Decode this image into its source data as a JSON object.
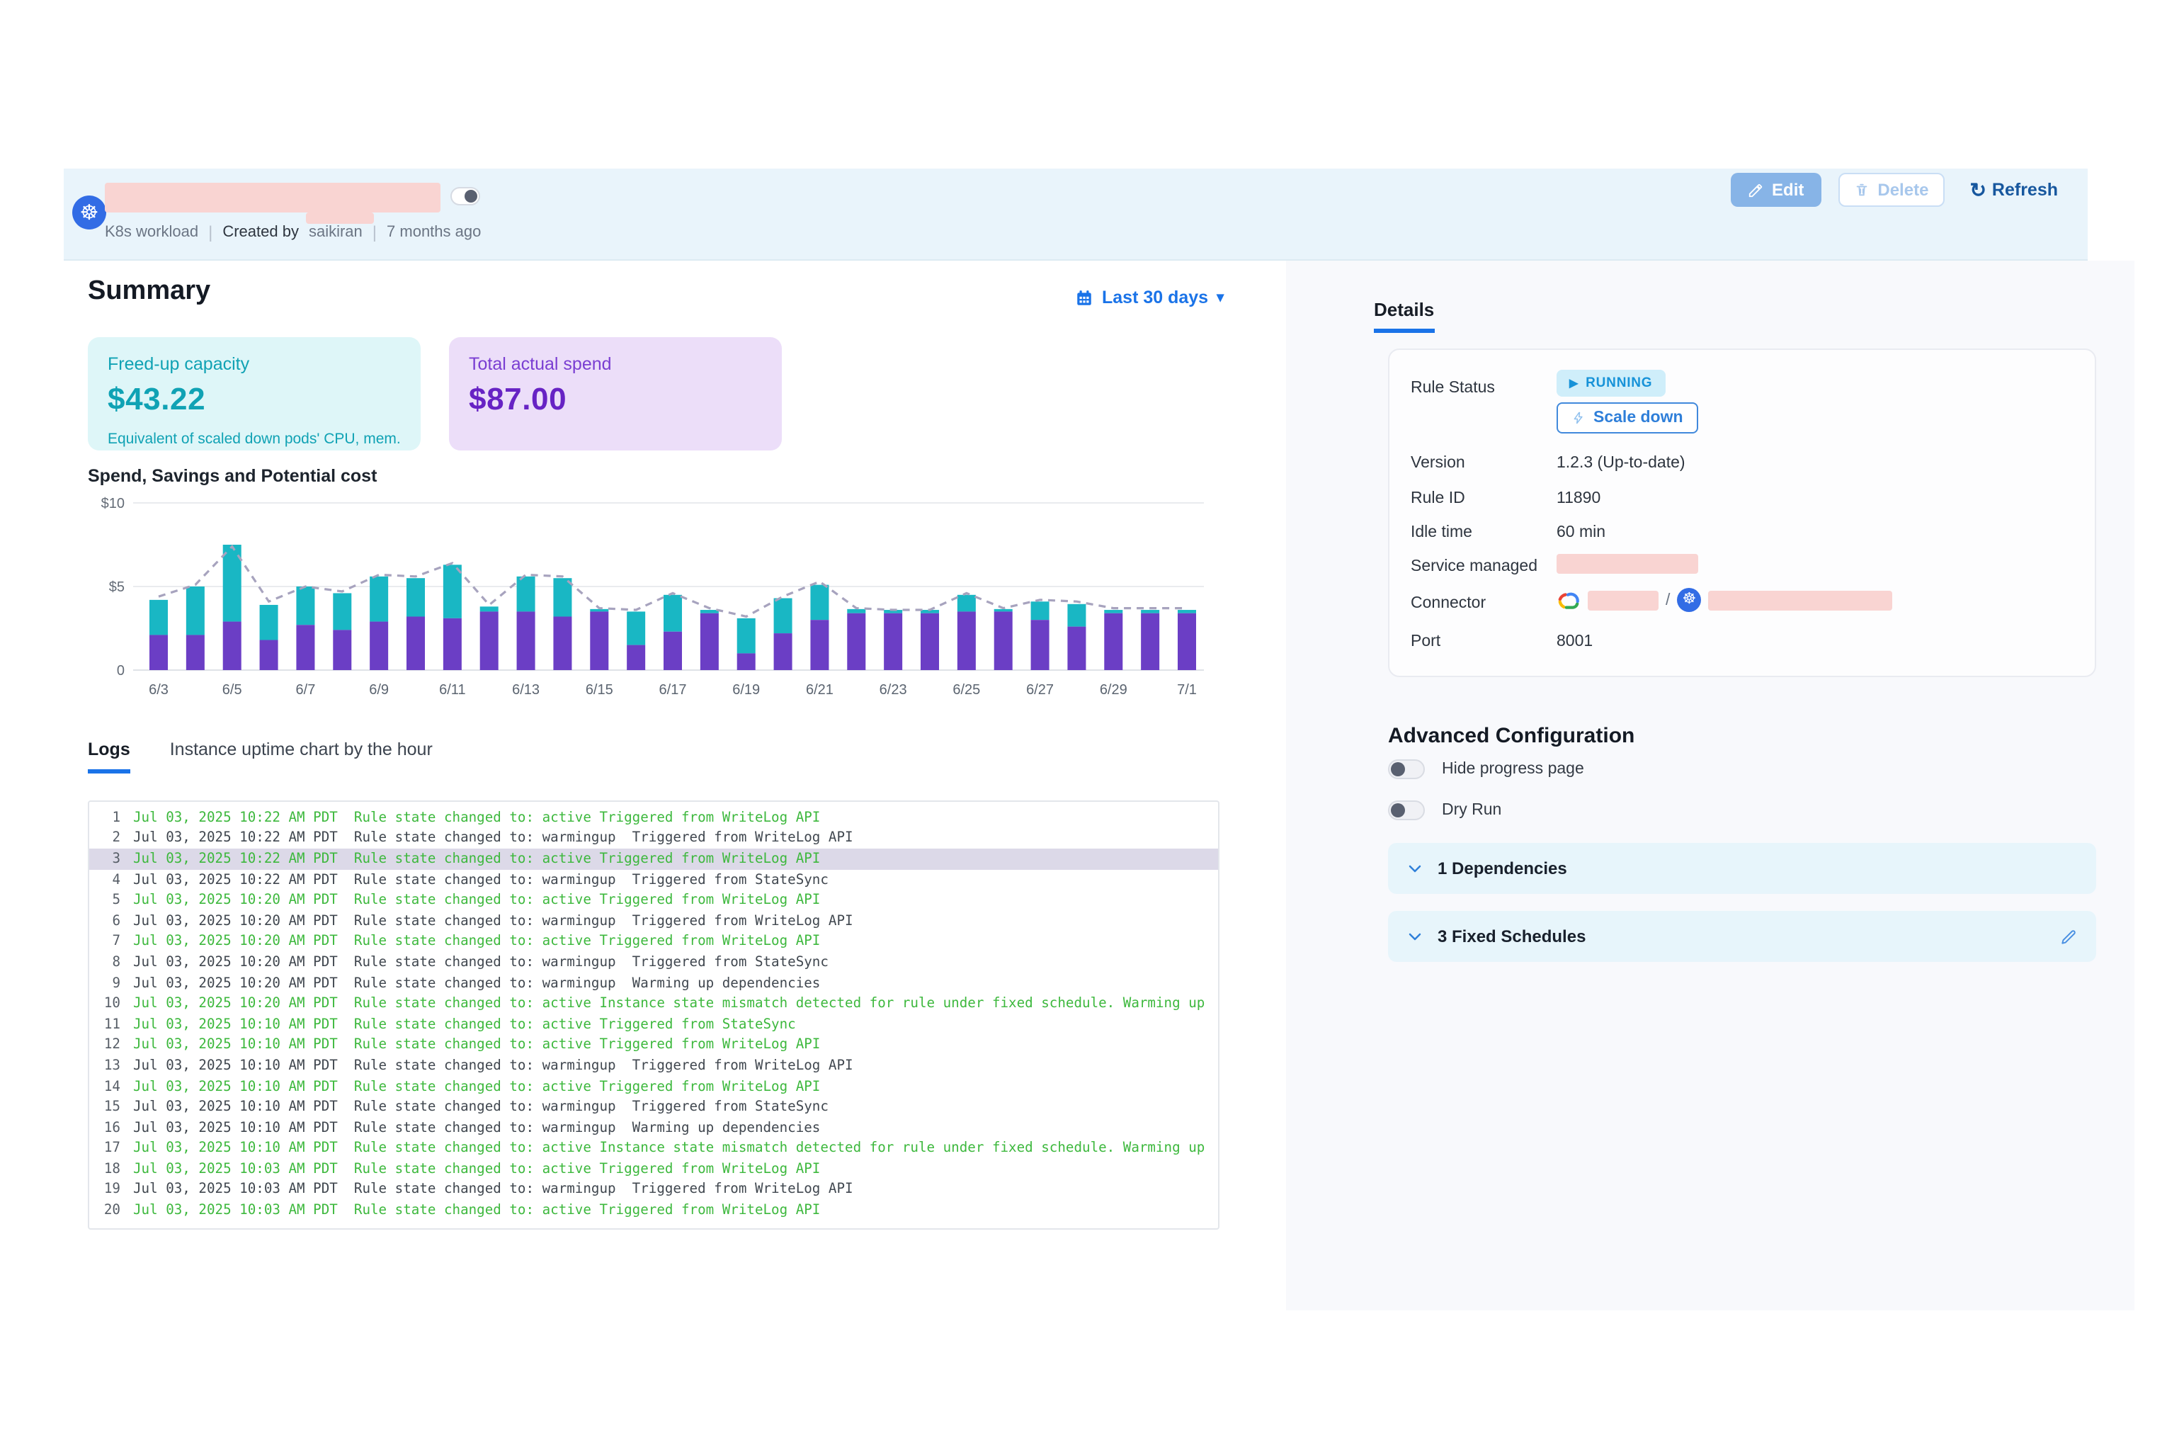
{
  "header": {
    "workload_type": "K8s workload",
    "created_by_label": "Created by",
    "created_by": "saikiran",
    "age": "7 months ago",
    "edit_label": "Edit",
    "delete_label": "Delete",
    "refresh_label": "Refresh",
    "refresh_icon": "↻"
  },
  "summary": {
    "title": "Summary",
    "date_range": "Last 30 days",
    "cards": [
      {
        "label": "Freed-up capacity",
        "value": "$43.22",
        "caption": "Equivalent of scaled down pods' CPU, mem."
      },
      {
        "label": "Total actual spend",
        "value": "$87.00"
      }
    ]
  },
  "chart_data": {
    "type": "bar",
    "title": "Spend, Savings and Potential cost",
    "x": [
      "6/3",
      "6/4",
      "6/5",
      "6/6",
      "6/7",
      "6/8",
      "6/9",
      "6/10",
      "6/11",
      "6/12",
      "6/13",
      "6/14",
      "6/15",
      "6/16",
      "6/17",
      "6/18",
      "6/19",
      "6/20",
      "6/21",
      "6/22",
      "6/23",
      "6/24",
      "6/25",
      "6/26",
      "6/27",
      "6/28",
      "6/29",
      "6/30",
      "7/1"
    ],
    "x_tick_labels": [
      "6/3",
      "6/5",
      "6/7",
      "6/9",
      "6/11",
      "6/13",
      "6/15",
      "6/17",
      "6/19",
      "6/21",
      "6/23",
      "6/25",
      "6/27",
      "6/29",
      "7/1"
    ],
    "ylim": [
      0,
      10
    ],
    "y_ticks": [
      {
        "v": 10,
        "label": "$10"
      },
      {
        "v": 5,
        "label": "$5"
      },
      {
        "v": 0,
        "label": "0"
      }
    ],
    "grid": true,
    "legend": "none",
    "series": [
      {
        "name": "Spend",
        "type": "bar",
        "stacked": true,
        "color": "#6b3ec5",
        "values": [
          2.1,
          2.1,
          2.9,
          1.8,
          2.7,
          2.4,
          2.9,
          3.2,
          3.1,
          3.5,
          3.5,
          3.2,
          3.5,
          1.5,
          2.3,
          3.4,
          1.0,
          2.2,
          3.0,
          3.4,
          3.4,
          3.4,
          3.5,
          3.5,
          3.0,
          2.6,
          3.4,
          3.4,
          3.4
        ]
      },
      {
        "name": "Savings",
        "type": "bar",
        "stacked": true,
        "color": "#19b7c4",
        "values": [
          2.1,
          2.9,
          4.6,
          2.1,
          2.3,
          2.2,
          2.7,
          2.3,
          3.2,
          0.3,
          2.1,
          2.3,
          0.15,
          2.0,
          2.2,
          0.2,
          2.1,
          2.1,
          2.1,
          0.25,
          0.2,
          0.2,
          1.0,
          0.15,
          1.1,
          1.35,
          0.2,
          0.2,
          0.2
        ]
      },
      {
        "name": "Potential cost",
        "type": "line",
        "style": "dashed",
        "color": "#a7a3be",
        "values": [
          4.4,
          5.1,
          7.4,
          4.1,
          5.0,
          4.7,
          5.7,
          5.6,
          6.4,
          3.9,
          5.7,
          5.6,
          3.7,
          3.6,
          4.6,
          3.7,
          3.2,
          4.4,
          5.3,
          3.7,
          3.6,
          3.6,
          4.6,
          3.7,
          4.2,
          4.1,
          3.7,
          3.7,
          3.7
        ]
      }
    ]
  },
  "tabs": {
    "logs": "Logs",
    "uptime": "Instance uptime chart by the hour"
  },
  "logs": [
    {
      "num": "1",
      "state": "active",
      "selected": false,
      "text": "Jul 03, 2025 10:22 AM PDT  Rule state changed to: active Triggered from WriteLog API"
    },
    {
      "num": "2",
      "state": "warn",
      "selected": false,
      "text": "Jul 03, 2025 10:22 AM PDT  Rule state changed to: warmingup  Triggered from WriteLog API"
    },
    {
      "num": "3",
      "state": "active",
      "selected": true,
      "text": "Jul 03, 2025 10:22 AM PDT  Rule state changed to: active Triggered from WriteLog API"
    },
    {
      "num": "4",
      "state": "warn",
      "selected": false,
      "text": "Jul 03, 2025 10:22 AM PDT  Rule state changed to: warmingup  Triggered from StateSync"
    },
    {
      "num": "5",
      "state": "active",
      "selected": false,
      "text": "Jul 03, 2025 10:20 AM PDT  Rule state changed to: active Triggered from WriteLog API"
    },
    {
      "num": "6",
      "state": "warn",
      "selected": false,
      "text": "Jul 03, 2025 10:20 AM PDT  Rule state changed to: warmingup  Triggered from WriteLog API"
    },
    {
      "num": "7",
      "state": "active",
      "selected": false,
      "text": "Jul 03, 2025 10:20 AM PDT  Rule state changed to: active Triggered from WriteLog API"
    },
    {
      "num": "8",
      "state": "warn",
      "selected": false,
      "text": "Jul 03, 2025 10:20 AM PDT  Rule state changed to: warmingup  Triggered from StateSync"
    },
    {
      "num": "9",
      "state": "warn",
      "selected": false,
      "text": "Jul 03, 2025 10:20 AM PDT  Rule state changed to: warmingup  Warming up dependencies"
    },
    {
      "num": "10",
      "state": "active",
      "selected": false,
      "text": "Jul 03, 2025 10:20 AM PDT  Rule state changed to: active Instance state mismatch detected for rule under fixed schedule. Warming up"
    },
    {
      "num": "11",
      "state": "active",
      "selected": false,
      "text": "Jul 03, 2025 10:10 AM PDT  Rule state changed to: active Triggered from StateSync"
    },
    {
      "num": "12",
      "state": "active",
      "selected": false,
      "text": "Jul 03, 2025 10:10 AM PDT  Rule state changed to: active Triggered from WriteLog API"
    },
    {
      "num": "13",
      "state": "warn",
      "selected": false,
      "text": "Jul 03, 2025 10:10 AM PDT  Rule state changed to: warmingup  Triggered from WriteLog API"
    },
    {
      "num": "14",
      "state": "active",
      "selected": false,
      "text": "Jul 03, 2025 10:10 AM PDT  Rule state changed to: active Triggered from WriteLog API"
    },
    {
      "num": "15",
      "state": "warn",
      "selected": false,
      "text": "Jul 03, 2025 10:10 AM PDT  Rule state changed to: warmingup  Triggered from StateSync"
    },
    {
      "num": "16",
      "state": "warn",
      "selected": false,
      "text": "Jul 03, 2025 10:10 AM PDT  Rule state changed to: warmingup  Warming up dependencies"
    },
    {
      "num": "17",
      "state": "active",
      "selected": false,
      "text": "Jul 03, 2025 10:10 AM PDT  Rule state changed to: active Instance state mismatch detected for rule under fixed schedule. Warming up"
    },
    {
      "num": "18",
      "state": "active",
      "selected": false,
      "text": "Jul 03, 2025 10:03 AM PDT  Rule state changed to: active Triggered from WriteLog API"
    },
    {
      "num": "19",
      "state": "warn",
      "selected": false,
      "text": "Jul 03, 2025 10:03 AM PDT  Rule state changed to: warmingup  Triggered from WriteLog API"
    },
    {
      "num": "20",
      "state": "active",
      "selected": false,
      "text": "Jul 03, 2025 10:03 AM PDT  Rule state changed to: active Triggered from WriteLog API"
    }
  ],
  "details": {
    "tab_label": "Details",
    "rule_status_label": "Rule Status",
    "running_label": "RUNNING",
    "scale_down_label": "Scale down",
    "version_label": "Version",
    "version_value": "1.2.3 (Up-to-date)",
    "rule_id_label": "Rule ID",
    "rule_id_value": "11890",
    "idle_time_label": "Idle time",
    "idle_time_value": "60 min",
    "service_managed_label": "Service managed",
    "connector_label": "Connector",
    "connector_separator": "/",
    "port_label": "Port",
    "port_value": "8001"
  },
  "advanced": {
    "title": "Advanced Configuration",
    "toggles": [
      {
        "label": "Hide progress page",
        "on": false
      },
      {
        "label": "Dry Run",
        "on": false
      }
    ],
    "accordions": [
      {
        "label": "1 Dependencies",
        "editable": false
      },
      {
        "label": "3 Fixed Schedules",
        "editable": true
      }
    ]
  },
  "colors": {
    "header_bg": "#e9f4fb",
    "accent_blue": "#1a73e8",
    "teal": "#19b7c4",
    "purple": "#6b3ec5",
    "log_green": "#3db83d",
    "redaction_pink": "#f9d4d2",
    "right_panel_bg": "#f8f9fc",
    "running_badge_bg": "#cfeefa",
    "running_badge_text": "#1792d8"
  }
}
